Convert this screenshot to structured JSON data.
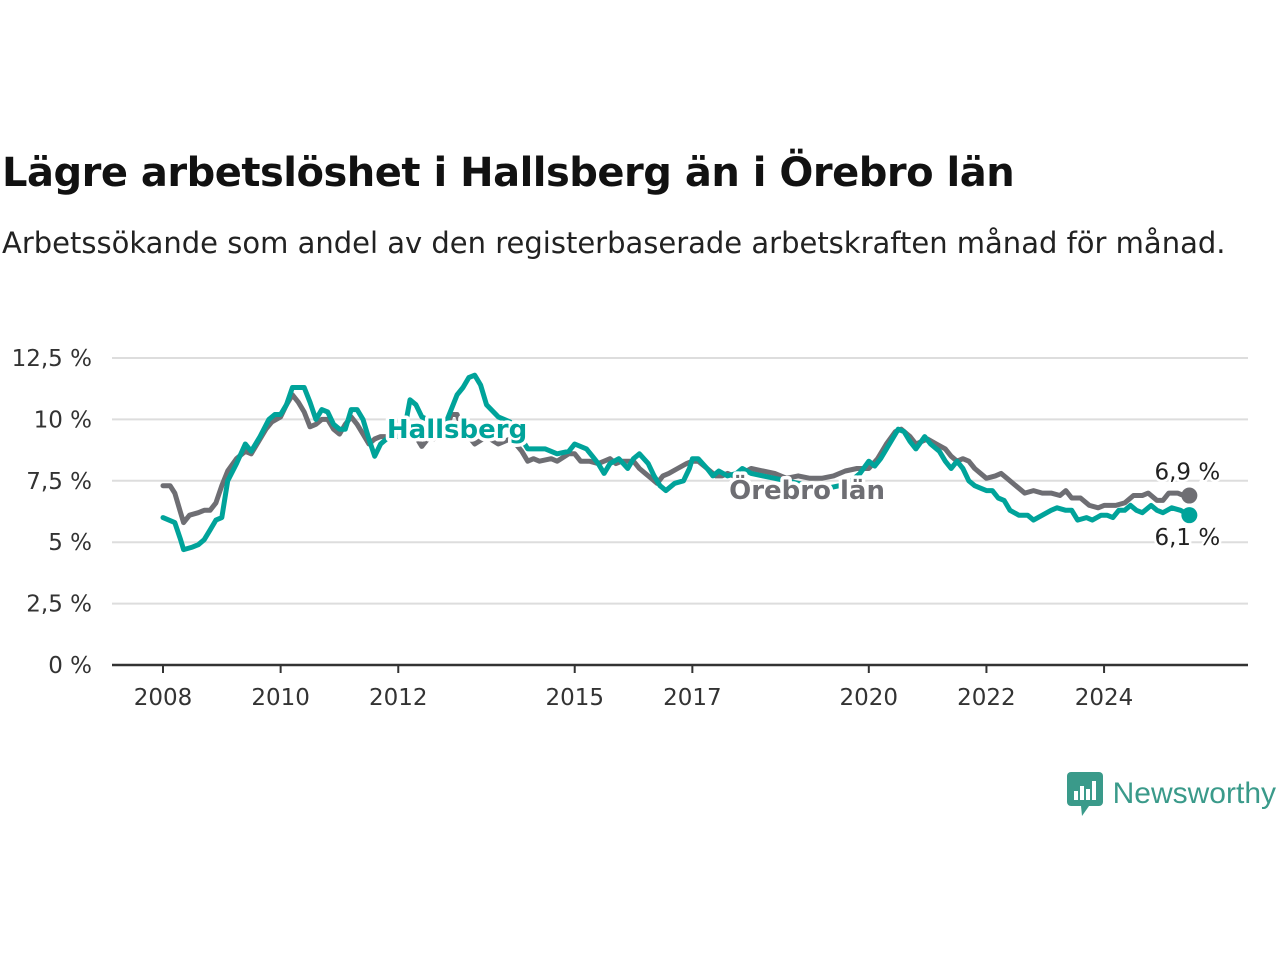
{
  "header": {
    "title": "Lägre arbetslöshet i Hallsberg än i Örebro län",
    "subtitle": "Arbetssökande som andel av den registerbaserade arbetskraften månad för månad."
  },
  "branding": {
    "name": "Newsworthy",
    "icon": "newsworthy-logo-icon",
    "color": "#3a9a8a"
  },
  "chart_data": {
    "type": "line",
    "title": "Lägre arbetslöshet i Hallsberg än i Örebro län",
    "subtitle": "Arbetssökande som andel av den registerbaserade arbetskraften månad för månad.",
    "x_range": [
      2008,
      2025.58
    ],
    "ylim": [
      0,
      12.5
    ],
    "y_ticks": [
      0,
      2.5,
      5,
      7.5,
      10,
      12.5
    ],
    "y_tick_labels": [
      "0 %",
      "2,5 %",
      "5 %",
      "7,5 %",
      "10 %",
      "12,5 %"
    ],
    "x_ticks": [
      2008,
      2010,
      2012,
      2015,
      2017,
      2020,
      2022,
      2024
    ],
    "x_tick_labels": [
      "2008",
      "2010",
      "2012",
      "2015",
      "2017",
      "2020",
      "2022",
      "2024"
    ],
    "grid": true,
    "legend": "inline labels",
    "series": [
      {
        "name": "Örebro län",
        "color": "#6e6e73",
        "end_label": "6,9 %",
        "points": [
          [
            2008.0,
            7.3
          ],
          [
            2008.12,
            7.3
          ],
          [
            2008.2,
            7.0
          ],
          [
            2008.3,
            6.2
          ],
          [
            2008.35,
            5.8
          ],
          [
            2008.45,
            6.1
          ],
          [
            2008.6,
            6.2
          ],
          [
            2008.7,
            6.3
          ],
          [
            2008.8,
            6.3
          ],
          [
            2008.9,
            6.6
          ],
          [
            2009.0,
            7.3
          ],
          [
            2009.1,
            7.9
          ],
          [
            2009.25,
            8.4
          ],
          [
            2009.4,
            8.7
          ],
          [
            2009.5,
            8.6
          ],
          [
            2009.6,
            9.0
          ],
          [
            2009.75,
            9.6
          ],
          [
            2009.85,
            9.9
          ],
          [
            2010.0,
            10.1
          ],
          [
            2010.1,
            10.6
          ],
          [
            2010.2,
            11.0
          ],
          [
            2010.3,
            10.7
          ],
          [
            2010.4,
            10.3
          ],
          [
            2010.5,
            9.7
          ],
          [
            2010.6,
            9.8
          ],
          [
            2010.7,
            10.0
          ],
          [
            2010.8,
            10.0
          ],
          [
            2010.9,
            9.6
          ],
          [
            2011.0,
            9.4
          ],
          [
            2011.1,
            9.8
          ],
          [
            2011.2,
            10.1
          ],
          [
            2011.3,
            9.8
          ],
          [
            2011.4,
            9.4
          ],
          [
            2011.5,
            9.0
          ],
          [
            2011.6,
            9.2
          ],
          [
            2011.7,
            9.3
          ],
          [
            2011.8,
            9.3
          ],
          [
            2011.9,
            9.3
          ],
          [
            2012.0,
            9.9
          ],
          [
            2012.1,
            9.9
          ],
          [
            2012.2,
            9.6
          ],
          [
            2012.3,
            9.3
          ],
          [
            2012.4,
            8.9
          ],
          [
            2012.5,
            9.2
          ],
          [
            2012.6,
            9.2
          ],
          [
            2012.8,
            9.4
          ],
          [
            2012.9,
            10.2
          ],
          [
            2013.0,
            10.2
          ],
          [
            2013.1,
            9.5
          ],
          [
            2013.2,
            9.3
          ],
          [
            2013.3,
            9.0
          ],
          [
            2013.5,
            9.3
          ],
          [
            2013.7,
            9.0
          ],
          [
            2013.9,
            9.2
          ],
          [
            2014.0,
            9.0
          ],
          [
            2014.1,
            8.7
          ],
          [
            2014.2,
            8.3
          ],
          [
            2014.3,
            8.4
          ],
          [
            2014.4,
            8.3
          ],
          [
            2014.6,
            8.4
          ],
          [
            2014.7,
            8.3
          ],
          [
            2014.9,
            8.6
          ],
          [
            2015.0,
            8.6
          ],
          [
            2015.1,
            8.3
          ],
          [
            2015.25,
            8.3
          ],
          [
            2015.4,
            8.2
          ],
          [
            2015.5,
            8.3
          ],
          [
            2015.6,
            8.4
          ],
          [
            2015.7,
            8.2
          ],
          [
            2015.8,
            8.3
          ],
          [
            2016.0,
            8.3
          ],
          [
            2016.1,
            8.0
          ],
          [
            2016.2,
            7.8
          ],
          [
            2016.3,
            7.6
          ],
          [
            2016.4,
            7.4
          ],
          [
            2016.5,
            7.7
          ],
          [
            2016.6,
            7.8
          ],
          [
            2016.75,
            8.0
          ],
          [
            2016.9,
            8.2
          ],
          [
            2017.0,
            8.3
          ],
          [
            2017.1,
            8.3
          ],
          [
            2017.25,
            8.0
          ],
          [
            2017.4,
            7.7
          ],
          [
            2017.5,
            7.7
          ],
          [
            2017.6,
            7.8
          ],
          [
            2017.7,
            7.7
          ],
          [
            2017.85,
            7.8
          ],
          [
            2018.0,
            8.0
          ],
          [
            2018.2,
            7.9
          ],
          [
            2018.4,
            7.8
          ],
          [
            2018.6,
            7.6
          ],
          [
            2018.8,
            7.7
          ],
          [
            2019.0,
            7.6
          ],
          [
            2019.2,
            7.6
          ],
          [
            2019.4,
            7.7
          ],
          [
            2019.6,
            7.9
          ],
          [
            2019.8,
            8.0
          ],
          [
            2020.0,
            8.0
          ],
          [
            2020.15,
            8.4
          ],
          [
            2020.3,
            9.0
          ],
          [
            2020.45,
            9.5
          ],
          [
            2020.55,
            9.6
          ],
          [
            2020.7,
            9.3
          ],
          [
            2020.8,
            9.0
          ],
          [
            2020.9,
            9.1
          ],
          [
            2021.0,
            9.2
          ],
          [
            2021.15,
            9.0
          ],
          [
            2021.3,
            8.8
          ],
          [
            2021.4,
            8.5
          ],
          [
            2021.5,
            8.3
          ],
          [
            2021.6,
            8.4
          ],
          [
            2021.7,
            8.3
          ],
          [
            2021.8,
            8.0
          ],
          [
            2021.9,
            7.8
          ],
          [
            2022.0,
            7.6
          ],
          [
            2022.15,
            7.7
          ],
          [
            2022.25,
            7.8
          ],
          [
            2022.35,
            7.6
          ],
          [
            2022.5,
            7.3
          ],
          [
            2022.65,
            7.0
          ],
          [
            2022.8,
            7.1
          ],
          [
            2022.95,
            7.0
          ],
          [
            2023.1,
            7.0
          ],
          [
            2023.25,
            6.9
          ],
          [
            2023.35,
            7.1
          ],
          [
            2023.45,
            6.8
          ],
          [
            2023.6,
            6.8
          ],
          [
            2023.75,
            6.5
          ],
          [
            2023.9,
            6.4
          ],
          [
            2024.0,
            6.5
          ],
          [
            2024.2,
            6.5
          ],
          [
            2024.35,
            6.6
          ],
          [
            2024.5,
            6.9
          ],
          [
            2024.65,
            6.9
          ],
          [
            2024.75,
            7.0
          ],
          [
            2024.9,
            6.7
          ],
          [
            2025.0,
            6.7
          ],
          [
            2025.1,
            7.0
          ],
          [
            2025.25,
            7.0
          ],
          [
            2025.35,
            6.9
          ],
          [
            2025.45,
            6.9
          ]
        ]
      },
      {
        "name": "Hallsberg",
        "color": "#00a39a",
        "end_label": "6,1 %",
        "points": [
          [
            2008.0,
            6.0
          ],
          [
            2008.1,
            5.9
          ],
          [
            2008.2,
            5.8
          ],
          [
            2008.3,
            5.1
          ],
          [
            2008.35,
            4.7
          ],
          [
            2008.5,
            4.8
          ],
          [
            2008.6,
            4.9
          ],
          [
            2008.7,
            5.1
          ],
          [
            2008.8,
            5.5
          ],
          [
            2008.9,
            5.9
          ],
          [
            2009.0,
            6.0
          ],
          [
            2009.1,
            7.5
          ],
          [
            2009.25,
            8.2
          ],
          [
            2009.4,
            9.0
          ],
          [
            2009.5,
            8.7
          ],
          [
            2009.65,
            9.3
          ],
          [
            2009.8,
            10.0
          ],
          [
            2009.9,
            10.2
          ],
          [
            2010.0,
            10.2
          ],
          [
            2010.1,
            10.6
          ],
          [
            2010.2,
            11.3
          ],
          [
            2010.3,
            11.3
          ],
          [
            2010.4,
            11.3
          ],
          [
            2010.5,
            10.7
          ],
          [
            2010.6,
            10.0
          ],
          [
            2010.7,
            10.4
          ],
          [
            2010.8,
            10.3
          ],
          [
            2010.9,
            9.8
          ],
          [
            2011.0,
            9.6
          ],
          [
            2011.1,
            9.6
          ],
          [
            2011.2,
            10.4
          ],
          [
            2011.3,
            10.4
          ],
          [
            2011.4,
            10.0
          ],
          [
            2011.5,
            9.2
          ],
          [
            2011.6,
            8.5
          ],
          [
            2011.7,
            9.0
          ],
          [
            2011.8,
            9.2
          ],
          [
            2011.9,
            9.4
          ],
          [
            2012.0,
            9.3
          ],
          [
            2012.1,
            9.5
          ],
          [
            2012.2,
            10.8
          ],
          [
            2012.3,
            10.6
          ],
          [
            2012.4,
            10.1
          ],
          [
            2012.5,
            10.0
          ],
          [
            2012.6,
            10.0
          ],
          [
            2012.8,
            9.8
          ],
          [
            2012.9,
            10.4
          ],
          [
            2013.0,
            11.0
          ],
          [
            2013.1,
            11.3
          ],
          [
            2013.2,
            11.7
          ],
          [
            2013.3,
            11.8
          ],
          [
            2013.4,
            11.4
          ],
          [
            2013.5,
            10.6
          ],
          [
            2013.7,
            10.1
          ],
          [
            2013.9,
            9.9
          ],
          [
            2014.0,
            9.5
          ],
          [
            2014.1,
            9.2
          ],
          [
            2014.2,
            8.8
          ],
          [
            2014.3,
            8.8
          ],
          [
            2014.5,
            8.8
          ],
          [
            2014.7,
            8.6
          ],
          [
            2014.9,
            8.7
          ],
          [
            2015.0,
            9.0
          ],
          [
            2015.2,
            8.8
          ],
          [
            2015.3,
            8.5
          ],
          [
            2015.4,
            8.2
          ],
          [
            2015.5,
            7.8
          ],
          [
            2015.6,
            8.2
          ],
          [
            2015.75,
            8.4
          ],
          [
            2015.9,
            8.0
          ],
          [
            2016.0,
            8.4
          ],
          [
            2016.1,
            8.6
          ],
          [
            2016.25,
            8.2
          ],
          [
            2016.35,
            7.7
          ],
          [
            2016.45,
            7.3
          ],
          [
            2016.55,
            7.1
          ],
          [
            2016.7,
            7.4
          ],
          [
            2016.85,
            7.5
          ],
          [
            2016.95,
            8.0
          ],
          [
            2017.0,
            8.4
          ],
          [
            2017.1,
            8.4
          ],
          [
            2017.25,
            8.0
          ],
          [
            2017.35,
            7.7
          ],
          [
            2017.45,
            7.9
          ],
          [
            2017.6,
            7.7
          ],
          [
            2017.75,
            7.8
          ],
          [
            2017.85,
            8.0
          ],
          [
            2018.0,
            7.8
          ],
          [
            2018.2,
            7.7
          ],
          [
            2018.4,
            7.6
          ],
          [
            2018.6,
            7.5
          ],
          [
            2018.8,
            7.4
          ],
          [
            2019.0,
            7.3
          ],
          [
            2019.3,
            7.2
          ],
          [
            2019.5,
            7.3
          ],
          [
            2019.7,
            7.5
          ],
          [
            2019.85,
            7.8
          ],
          [
            2020.0,
            8.3
          ],
          [
            2020.1,
            8.1
          ],
          [
            2020.2,
            8.4
          ],
          [
            2020.35,
            9.0
          ],
          [
            2020.5,
            9.6
          ],
          [
            2020.6,
            9.5
          ],
          [
            2020.7,
            9.1
          ],
          [
            2020.8,
            8.8
          ],
          [
            2020.95,
            9.3
          ],
          [
            2021.05,
            9.0
          ],
          [
            2021.2,
            8.7
          ],
          [
            2021.3,
            8.3
          ],
          [
            2021.4,
            8.0
          ],
          [
            2021.5,
            8.3
          ],
          [
            2021.6,
            8.0
          ],
          [
            2021.7,
            7.5
          ],
          [
            2021.8,
            7.3
          ],
          [
            2021.9,
            7.2
          ],
          [
            2022.0,
            7.1
          ],
          [
            2022.1,
            7.1
          ],
          [
            2022.2,
            6.8
          ],
          [
            2022.3,
            6.7
          ],
          [
            2022.4,
            6.3
          ],
          [
            2022.55,
            6.1
          ],
          [
            2022.7,
            6.1
          ],
          [
            2022.8,
            5.9
          ],
          [
            2022.95,
            6.1
          ],
          [
            2023.1,
            6.3
          ],
          [
            2023.2,
            6.4
          ],
          [
            2023.35,
            6.3
          ],
          [
            2023.45,
            6.3
          ],
          [
            2023.55,
            5.9
          ],
          [
            2023.7,
            6.0
          ],
          [
            2023.8,
            5.9
          ],
          [
            2023.95,
            6.1
          ],
          [
            2024.05,
            6.1
          ],
          [
            2024.15,
            6.0
          ],
          [
            2024.25,
            6.3
          ],
          [
            2024.35,
            6.3
          ],
          [
            2024.45,
            6.5
          ],
          [
            2024.55,
            6.3
          ],
          [
            2024.65,
            6.2
          ],
          [
            2024.8,
            6.5
          ],
          [
            2024.9,
            6.3
          ],
          [
            2025.0,
            6.2
          ],
          [
            2025.15,
            6.4
          ],
          [
            2025.3,
            6.3
          ],
          [
            2025.45,
            6.1
          ]
        ]
      }
    ]
  }
}
